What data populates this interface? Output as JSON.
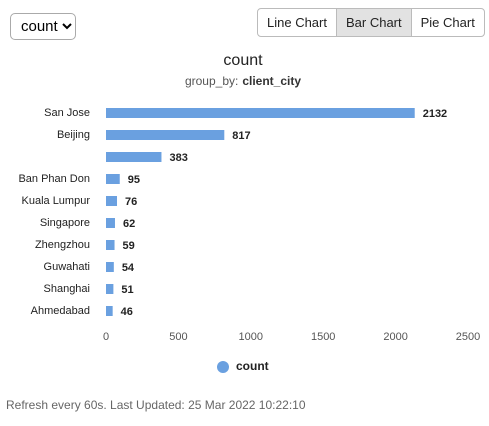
{
  "controls": {
    "select": "count",
    "buttons": [
      "Line Chart",
      "Bar Chart",
      "Pie Chart"
    ],
    "active_button": 1
  },
  "chart_data": {
    "type": "bar",
    "orientation": "horizontal",
    "title": "count",
    "subtitle_prefix": "group_by:",
    "subtitle_field": "client_city",
    "categories": [
      "San Jose",
      "Beijing",
      null,
      "Ban Phan Don",
      "Kuala Lumpur",
      "Singapore",
      "Zhengzhou",
      "Guwahati",
      "Shanghai",
      "Ahmedabad"
    ],
    "series": [
      {
        "name": "count",
        "color": "#6aa0e0",
        "values": [
          2132,
          817,
          383,
          95,
          76,
          62,
          59,
          54,
          51,
          46
        ]
      }
    ],
    "xlim": [
      0,
      2500
    ],
    "xticks": [
      0,
      500,
      1000,
      1500,
      2000,
      2500
    ],
    "grid": false,
    "legend": "bottom"
  },
  "footer": "Refresh every 60s. Last Updated: 25 Mar 2022 10:22:10"
}
